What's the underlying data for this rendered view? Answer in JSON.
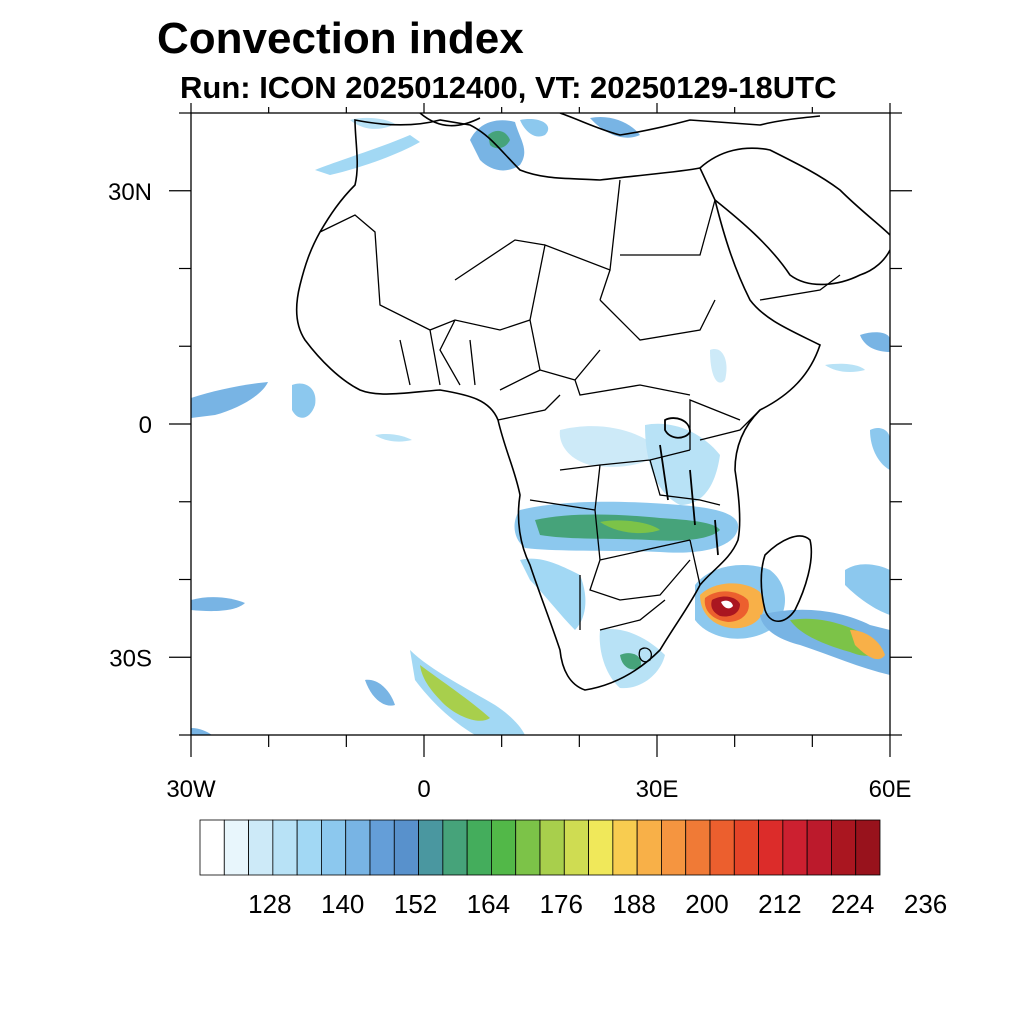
{
  "title": "Convection index",
  "subtitle": "Run: ICON 2025012400,  VT: 20250129-18UTC",
  "map": {
    "lon_range": [
      -30,
      60
    ],
    "lat_range": [
      -40,
      40
    ],
    "x_ticks": [
      {
        "lon": -30,
        "label": "30W"
      },
      {
        "lon": 0,
        "label": "0"
      },
      {
        "lon": 30,
        "label": "30E"
      },
      {
        "lon": 60,
        "label": "60E"
      }
    ],
    "y_ticks": [
      {
        "lat": 30,
        "label": "30N"
      },
      {
        "lat": 0,
        "label": "0"
      },
      {
        "lat": -30,
        "label": "30S"
      }
    ]
  },
  "colorbar": {
    "colors": [
      "#ffffff",
      "#e8f6fc",
      "#cdeaf8",
      "#b8e2f6",
      "#a2d8f4",
      "#8cc8ee",
      "#78b4e4",
      "#649ed8",
      "#5891cc",
      "#4a97a0",
      "#46a37a",
      "#44ad5c",
      "#52b848",
      "#7cc348",
      "#a8cf4c",
      "#cfdc52",
      "#f0e85a",
      "#f8cc50",
      "#f8b048",
      "#f59540",
      "#f07a36",
      "#ec5f2e",
      "#e44428",
      "#dc2c2a",
      "#cc2030",
      "#bc1a2c",
      "#aa1620",
      "#98121c"
    ],
    "labels": [
      "128",
      "140",
      "152",
      "164",
      "176",
      "188",
      "200",
      "212",
      "224",
      "236"
    ]
  }
}
